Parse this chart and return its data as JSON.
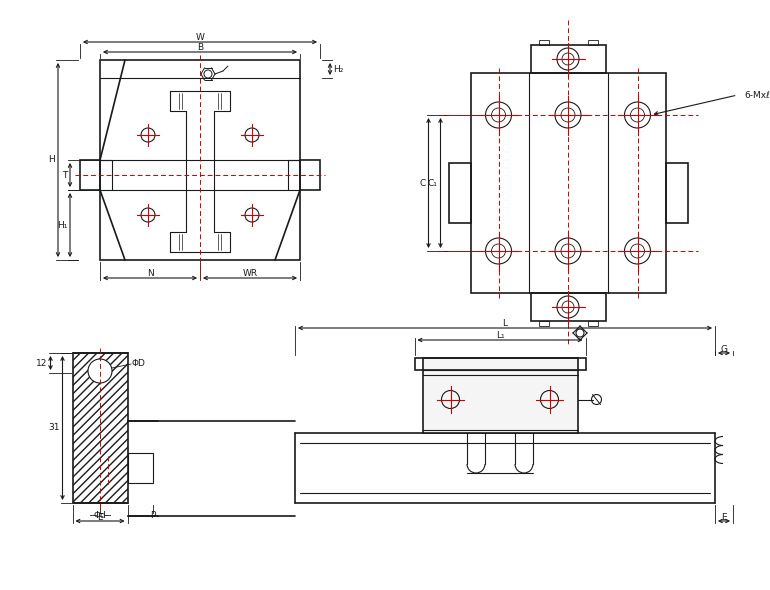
{
  "bg_color": "#ffffff",
  "line_color": "#1a1a1a",
  "dim_color": "#1a1a1a",
  "center_color": "#cc0000",
  "figsize": [
    7.7,
    5.9
  ],
  "dpi": 100,
  "labels": {
    "W": "W",
    "B": "B",
    "H": "H",
    "H1": "H₁",
    "H2": "H₂",
    "T": "T",
    "N": "N",
    "WR": "WR",
    "C": "C",
    "C1": "C₁",
    "L": "L",
    "L1": "L₁",
    "G": "G",
    "E": "E",
    "PhiD": "ΦD",
    "Phid": "Φd",
    "P": "P",
    "dim12": "12",
    "dim31": "31",
    "label6Mx": "6-Mxℓ"
  }
}
